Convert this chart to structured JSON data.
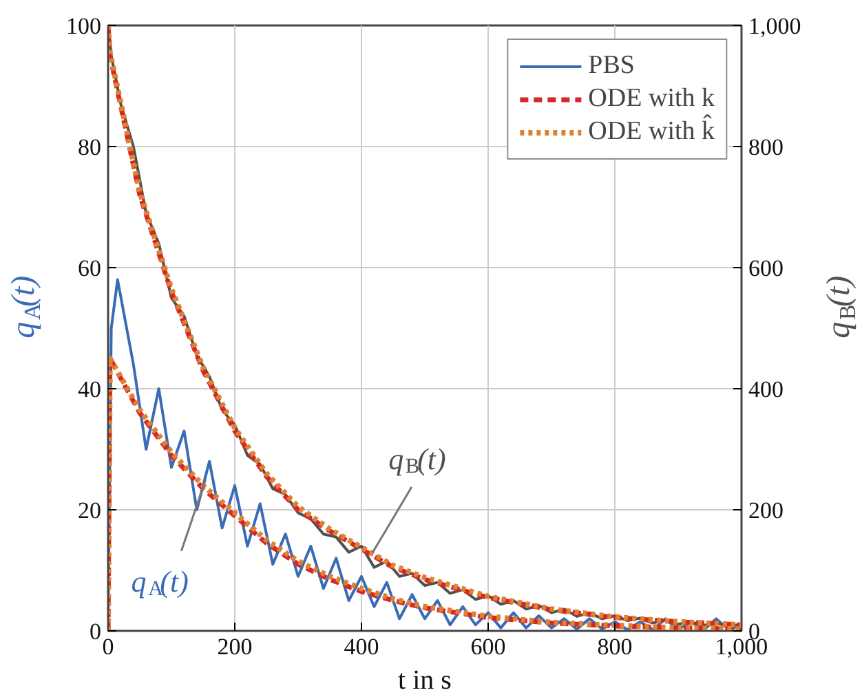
{
  "chart_data": {
    "type": "line",
    "xlabel": "t in s",
    "ylabel": "q$_{A}$(t)",
    "y2label": "q$_{B}$(t)",
    "xlim": [
      0,
      1000
    ],
    "xticks": [
      0,
      200,
      400,
      600,
      800,
      {
        "value": 1000,
        "label": "1,000"
      }
    ],
    "ylim": [
      0,
      100
    ],
    "yticks": [
      0,
      20,
      40,
      60,
      80,
      100
    ],
    "y2lim": [
      0,
      1000
    ],
    "y2ticks": [
      0,
      200,
      400,
      600,
      800,
      {
        "value": 1000,
        "label": "1,000"
      }
    ],
    "grid": true,
    "legend": "top right",
    "marker": "none",
    "annotations": [
      {
        "text": "q$_{A}$(t)",
        "x": 154,
        "y": 25
      },
      {
        "text": "q$_{B}$(t)",
        "x": 418,
        "y": 13
      }
    ],
    "series": [
      {
        "name": "PBS",
        "color": "#3a6bb5",
        "line_style": "solid",
        "x": [
          0,
          5,
          15,
          40,
          60,
          80,
          100,
          120,
          140,
          160,
          180,
          200,
          220,
          240,
          260,
          280,
          300,
          320,
          340,
          360,
          380,
          400,
          420,
          440,
          460,
          480,
          500,
          520,
          540,
          560,
          580,
          600,
          620,
          640,
          660,
          680,
          700,
          720,
          740,
          760,
          780,
          800,
          820,
          840,
          860,
          880,
          900,
          920,
          940,
          960,
          980,
          1000
        ],
        "values": [
          0,
          50,
          58,
          44,
          30,
          40,
          27,
          33,
          20,
          28,
          17,
          24,
          14,
          21,
          11,
          16,
          9,
          14,
          7,
          12,
          5,
          9,
          4,
          8,
          2,
          6,
          2,
          5,
          1,
          4,
          1,
          3,
          0.5,
          3,
          0.5,
          2.5,
          0.5,
          2,
          0.3,
          2,
          0.3,
          1.5,
          0.2,
          1.5,
          0.2,
          2,
          0.2,
          1.5,
          0.1,
          2,
          0.2,
          1
        ]
      },
      {
        "color": "#505050",
        "line_style": "solid",
        "axis": "y2",
        "x": [
          0,
          5,
          20,
          40,
          60,
          80,
          100,
          120,
          140,
          160,
          180,
          200,
          220,
          240,
          260,
          280,
          300,
          320,
          340,
          360,
          380,
          400,
          420,
          440,
          460,
          480,
          500,
          520,
          540,
          560,
          580,
          600,
          620,
          640,
          660,
          680,
          700,
          720,
          740,
          760,
          780,
          800,
          820,
          840,
          860,
          880,
          900,
          920,
          940,
          960,
          980,
          1000
        ],
        "values": [
          1000,
          950,
          870,
          800,
          690,
          640,
          550,
          520,
          455,
          420,
          365,
          340,
          290,
          275,
          235,
          225,
          195,
          185,
          160,
          155,
          130,
          140,
          105,
          115,
          90,
          95,
          75,
          80,
          62,
          68,
          52,
          58,
          44,
          50,
          36,
          42,
          30,
          36,
          24,
          30,
          20,
          25,
          17,
          21,
          13,
          18,
          11,
          15,
          9,
          13,
          8,
          11
        ]
      },
      {
        "name": "ODE with k",
        "color": "#d62728",
        "line_style": "dashed",
        "x": [
          0,
          3,
          50,
          100,
          150,
          200,
          250,
          300,
          350,
          400,
          450,
          500,
          600,
          700,
          800,
          900,
          1000
        ],
        "values": [
          0,
          45,
          36,
          29,
          23.5,
          19,
          14.5,
          11,
          8.5,
          6.5,
          5,
          3.8,
          2.2,
          1.3,
          0.8,
          0.5,
          0.3
        ]
      },
      {
        "color": "#d62728",
        "line_style": "dashed",
        "axis": "y2",
        "x": [
          0,
          3,
          50,
          100,
          150,
          200,
          250,
          300,
          350,
          400,
          450,
          500,
          600,
          700,
          800,
          900,
          1000
        ],
        "values": [
          1000,
          950,
          720,
          560,
          430,
          330,
          255,
          200,
          165,
          135,
          105,
          85,
          55,
          35,
          22,
          15,
          10
        ]
      },
      {
        "name": "ODE with k̂",
        "color": "#e0812f",
        "line_style": "dotted",
        "x": [
          0,
          3,
          50,
          100,
          150,
          200,
          250,
          300,
          350,
          400,
          450,
          500,
          600,
          700,
          800,
          900,
          1000
        ],
        "values": [
          0,
          45,
          36.5,
          29.5,
          24,
          19.5,
          15,
          11.5,
          9,
          7,
          5.3,
          4,
          2.4,
          1.4,
          0.9,
          0.5,
          0.3
        ]
      },
      {
        "color": "#e0812f",
        "line_style": "dotted",
        "axis": "y2",
        "x": [
          0,
          3,
          50,
          100,
          150,
          200,
          250,
          300,
          350,
          400,
          450,
          500,
          600,
          700,
          800,
          900,
          1000
        ],
        "values": [
          1000,
          955,
          725,
          565,
          435,
          335,
          260,
          205,
          168,
          138,
          108,
          88,
          57,
          36,
          23,
          15,
          10
        ]
      }
    ]
  }
}
